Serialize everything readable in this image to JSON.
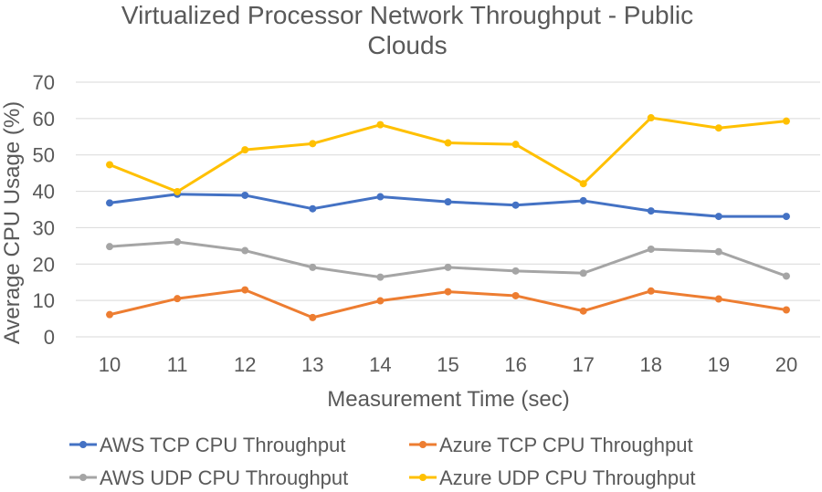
{
  "chart_data": {
    "type": "line",
    "title_lines": [
      "Virtualized Processor Network Throughput - Public",
      "Clouds"
    ],
    "xlabel": "Measurement Time (sec)",
    "ylabel": "Average CPU Usage (%)",
    "categories": [
      "10",
      "11",
      "12",
      "13",
      "14",
      "15",
      "16",
      "17",
      "18",
      "19",
      "20"
    ],
    "y_ticks": [
      "0",
      "10",
      "20",
      "30",
      "40",
      "50",
      "60",
      "70"
    ],
    "ylim": [
      0,
      70
    ],
    "grid": true,
    "legend_position": "bottom",
    "series": [
      {
        "name": "AWS TCP CPU Throughput",
        "color": "#4472C4",
        "values": [
          36.8,
          39.2,
          38.9,
          35.2,
          38.5,
          37.1,
          36.2,
          37.4,
          34.6,
          33.1,
          33.1
        ]
      },
      {
        "name": "Azure TCP CPU Throughput",
        "color": "#ED7D31",
        "values": [
          6.1,
          10.5,
          12.9,
          5.3,
          9.9,
          12.4,
          11.3,
          7.1,
          12.6,
          10.4,
          7.4
        ]
      },
      {
        "name": "AWS UDP CPU Throughput",
        "color": "#A5A5A5",
        "values": [
          24.8,
          26.1,
          23.7,
          19.1,
          16.4,
          19.1,
          18.1,
          17.5,
          24.1,
          23.4,
          16.7
        ]
      },
      {
        "name": "Azure UDP CPU Throughput",
        "color": "#FFC000",
        "values": [
          47.3,
          39.9,
          51.4,
          53.1,
          58.3,
          53.3,
          52.9,
          42.1,
          60.2,
          57.4,
          59.3
        ]
      }
    ]
  }
}
